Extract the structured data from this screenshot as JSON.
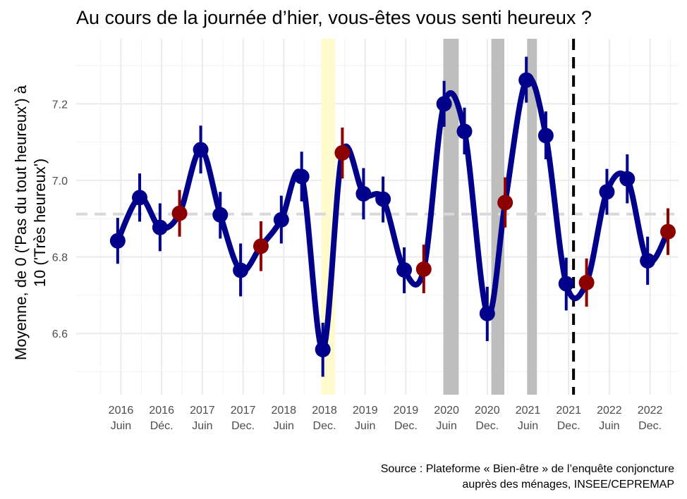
{
  "chart_data": {
    "type": "line",
    "title": "Au cours de la journée d’hier, vous-êtes vous senti heureux ?",
    "ylabel_lines": [
      "Moyenne, de 0 ('Pas du tout heureux') à",
      "10 ('Très heureux')"
    ],
    "caption_lines": [
      "Source : Plateforme « Bien-être » de l’enquête conjoncture",
      "auprès des ménages, INSEE/CEPREMAP"
    ],
    "ylim": [
      6.44,
      7.37
    ],
    "yticks": [
      6.6,
      6.8,
      7.0,
      7.2
    ],
    "ytick_labels": [
      "6.6",
      "6.8",
      "7.0",
      "7.2"
    ],
    "xlim": [
      2015.7,
      2023.1
    ],
    "xticks": [
      {
        "x": 2016.25,
        "year": "2016",
        "month": "Juin"
      },
      {
        "x": 2016.75,
        "year": "2016",
        "month": "Déc."
      },
      {
        "x": 2017.25,
        "year": "2017",
        "month": "Juin"
      },
      {
        "x": 2017.75,
        "year": "2017",
        "month": "Dec."
      },
      {
        "x": 2018.25,
        "year": "2018",
        "month": "Juin"
      },
      {
        "x": 2018.75,
        "year": "2018",
        "month": "Dec."
      },
      {
        "x": 2019.25,
        "year": "2019",
        "month": "Juin"
      },
      {
        "x": 2019.75,
        "year": "2019",
        "month": "Dec."
      },
      {
        "x": 2020.25,
        "year": "2020",
        "month": "Juin"
      },
      {
        "x": 2020.75,
        "year": "2020",
        "month": "Dec."
      },
      {
        "x": 2021.25,
        "year": "2021",
        "month": "Juin"
      },
      {
        "x": 2021.75,
        "year": "2021",
        "month": "Dec."
      },
      {
        "x": 2022.25,
        "year": "2022",
        "month": "Juin"
      },
      {
        "x": 2022.75,
        "year": "2022",
        "month": "Dec."
      }
    ],
    "reference_line": {
      "y": 6.912,
      "style": "dashed",
      "color": "#d9d9d9"
    },
    "vertical_line": {
      "x": 2021.81,
      "style": "dashed",
      "color": "#000000"
    },
    "shaded_periods": [
      {
        "x0": 2018.71,
        "x1": 2018.88,
        "color": "#fffacd"
      },
      {
        "x0": 2020.21,
        "x1": 2020.4,
        "color": "#bebebe"
      },
      {
        "x0": 2020.8,
        "x1": 2020.96,
        "color": "#bebebe"
      },
      {
        "x0": 2021.24,
        "x1": 2021.36,
        "color": "#bebebe"
      }
    ],
    "line_color": "#00008b",
    "point_colors": {
      "blue": "#00008b",
      "red": "#8b0000"
    },
    "series": [
      {
        "points": [
          {
            "x": 2016.21,
            "y": 6.842,
            "lo": 6.782,
            "hi": 6.902,
            "c": "blue"
          },
          {
            "x": 2016.48,
            "y": 6.955,
            "lo": 6.892,
            "hi": 7.018,
            "c": "blue"
          },
          {
            "x": 2016.73,
            "y": 6.877,
            "lo": 6.815,
            "hi": 6.94,
            "c": "blue"
          },
          {
            "x": 2016.97,
            "y": 6.914,
            "lo": 6.853,
            "hi": 6.975,
            "c": "red"
          },
          {
            "x": 2017.23,
            "y": 7.08,
            "lo": 7.018,
            "hi": 7.143,
            "c": "blue"
          },
          {
            "x": 2017.47,
            "y": 6.91,
            "lo": 6.848,
            "hi": 6.97,
            "c": "blue"
          },
          {
            "x": 2017.72,
            "y": 6.765,
            "lo": 6.697,
            "hi": 6.835,
            "c": "blue"
          },
          {
            "x": 2017.97,
            "y": 6.828,
            "lo": 6.763,
            "hi": 6.893,
            "c": "red"
          },
          {
            "x": 2018.22,
            "y": 6.897,
            "lo": 6.835,
            "hi": 6.96,
            "c": "blue"
          },
          {
            "x": 2018.47,
            "y": 7.01,
            "lo": 6.945,
            "hi": 7.075,
            "c": "blue"
          },
          {
            "x": 2018.73,
            "y": 6.558,
            "lo": 6.487,
            "hi": 6.628,
            "c": "blue"
          },
          {
            "x": 2018.97,
            "y": 7.072,
            "lo": 7.005,
            "hi": 7.138,
            "c": "red"
          },
          {
            "x": 2019.23,
            "y": 6.965,
            "lo": 6.898,
            "hi": 7.032,
            "c": "blue"
          },
          {
            "x": 2019.47,
            "y": 6.951,
            "lo": 6.89,
            "hi": 7.01,
            "c": "blue"
          },
          {
            "x": 2019.73,
            "y": 6.766,
            "lo": 6.705,
            "hi": 6.825,
            "c": "blue"
          },
          {
            "x": 2019.97,
            "y": 6.768,
            "lo": 6.705,
            "hi": 6.832,
            "c": "red"
          },
          {
            "x": 2020.22,
            "y": 7.2,
            "lo": 7.14,
            "hi": 7.26,
            "c": "blue"
          },
          {
            "x": 2020.47,
            "y": 7.128,
            "lo": 7.068,
            "hi": 7.19,
            "c": "blue"
          },
          {
            "x": 2020.75,
            "y": 6.652,
            "lo": 6.58,
            "hi": 6.722,
            "c": "blue"
          },
          {
            "x": 2020.97,
            "y": 6.942,
            "lo": 6.877,
            "hi": 7.008,
            "c": "red"
          },
          {
            "x": 2021.23,
            "y": 7.262,
            "lo": 7.203,
            "hi": 7.323,
            "c": "blue"
          },
          {
            "x": 2021.47,
            "y": 7.117,
            "lo": 7.055,
            "hi": 7.18,
            "c": "blue"
          },
          {
            "x": 2021.72,
            "y": 6.73,
            "lo": 6.66,
            "hi": 6.798,
            "c": "blue"
          },
          {
            "x": 2021.97,
            "y": 6.733,
            "lo": 6.67,
            "hi": 6.796,
            "c": "red"
          },
          {
            "x": 2022.22,
            "y": 6.97,
            "lo": 6.91,
            "hi": 7.03,
            "c": "blue"
          },
          {
            "x": 2022.47,
            "y": 7.004,
            "lo": 6.94,
            "hi": 7.068,
            "c": "blue"
          },
          {
            "x": 2022.72,
            "y": 6.79,
            "lo": 6.727,
            "hi": 6.853,
            "c": "blue"
          },
          {
            "x": 2022.97,
            "y": 6.866,
            "lo": 6.805,
            "hi": 6.927,
            "c": "red"
          }
        ]
      }
    ]
  }
}
